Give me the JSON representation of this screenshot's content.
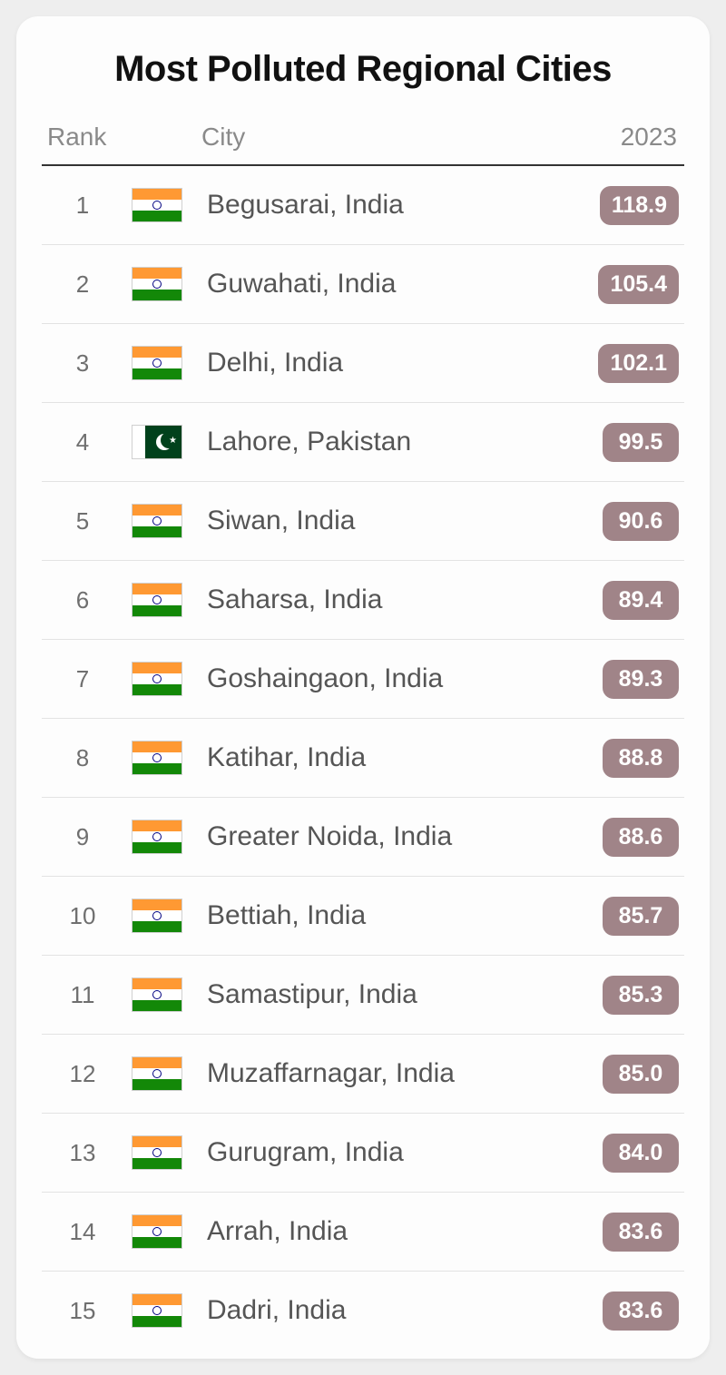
{
  "title": "Most Polluted Regional Cities",
  "columns": {
    "rank": "Rank",
    "city": "City",
    "year": "2023"
  },
  "badge_color": "#a08488",
  "flags": {
    "india": {
      "type": "india"
    },
    "pakistan": {
      "type": "pakistan"
    }
  },
  "rows": [
    {
      "rank": "1",
      "flag": "india",
      "city": "Begusarai, India",
      "value": "118.9"
    },
    {
      "rank": "2",
      "flag": "india",
      "city": "Guwahati, India",
      "value": "105.4"
    },
    {
      "rank": "3",
      "flag": "india",
      "city": "Delhi, India",
      "value": "102.1"
    },
    {
      "rank": "4",
      "flag": "pakistan",
      "city": "Lahore, Pakistan",
      "value": "99.5"
    },
    {
      "rank": "5",
      "flag": "india",
      "city": "Siwan, India",
      "value": "90.6"
    },
    {
      "rank": "6",
      "flag": "india",
      "city": "Saharsa, India",
      "value": "89.4"
    },
    {
      "rank": "7",
      "flag": "india",
      "city": "Goshaingaon, India",
      "value": "89.3"
    },
    {
      "rank": "8",
      "flag": "india",
      "city": "Katihar, India",
      "value": "88.8"
    },
    {
      "rank": "9",
      "flag": "india",
      "city": "Greater Noida, India",
      "value": "88.6"
    },
    {
      "rank": "10",
      "flag": "india",
      "city": "Bettiah, India",
      "value": "85.7"
    },
    {
      "rank": "11",
      "flag": "india",
      "city": "Samastipur, India",
      "value": "85.3"
    },
    {
      "rank": "12",
      "flag": "india",
      "city": "Muzaffarnagar, India",
      "value": "85.0"
    },
    {
      "rank": "13",
      "flag": "india",
      "city": "Gurugram, India",
      "value": "84.0"
    },
    {
      "rank": "14",
      "flag": "india",
      "city": "Arrah, India",
      "value": "83.6"
    },
    {
      "rank": "15",
      "flag": "india",
      "city": "Dadri, India",
      "value": "83.6"
    }
  ]
}
